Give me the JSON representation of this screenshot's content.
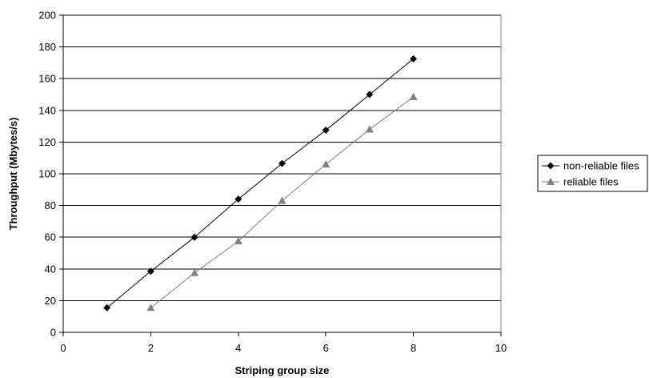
{
  "chart_data": {
    "type": "line",
    "title": "",
    "xlabel": "Striping group size",
    "ylabel": "Throughput (Mbytes/s)",
    "xlim": [
      0,
      10
    ],
    "ylim": [
      0,
      200
    ],
    "x_ticks": [
      0,
      2,
      4,
      6,
      8,
      10
    ],
    "y_ticks": [
      0,
      20,
      40,
      60,
      80,
      100,
      120,
      140,
      160,
      180,
      200
    ],
    "grid": {
      "horizontal": true,
      "vertical": false
    },
    "legend_position": "right",
    "series": [
      {
        "name": "non-reliable files",
        "marker": "diamond",
        "color": "#000000",
        "x": [
          1,
          2,
          3,
          4,
          5,
          6,
          7,
          8
        ],
        "y": [
          15.5,
          38.5,
          60,
          84,
          106.5,
          127.5,
          150,
          172.5
        ]
      },
      {
        "name": "reliable files",
        "marker": "triangle",
        "color": "#808080",
        "x": [
          2,
          3,
          4,
          5,
          6,
          7,
          8
        ],
        "y": [
          15.5,
          37.5,
          57.5,
          83,
          106,
          128,
          148.5
        ]
      }
    ]
  }
}
